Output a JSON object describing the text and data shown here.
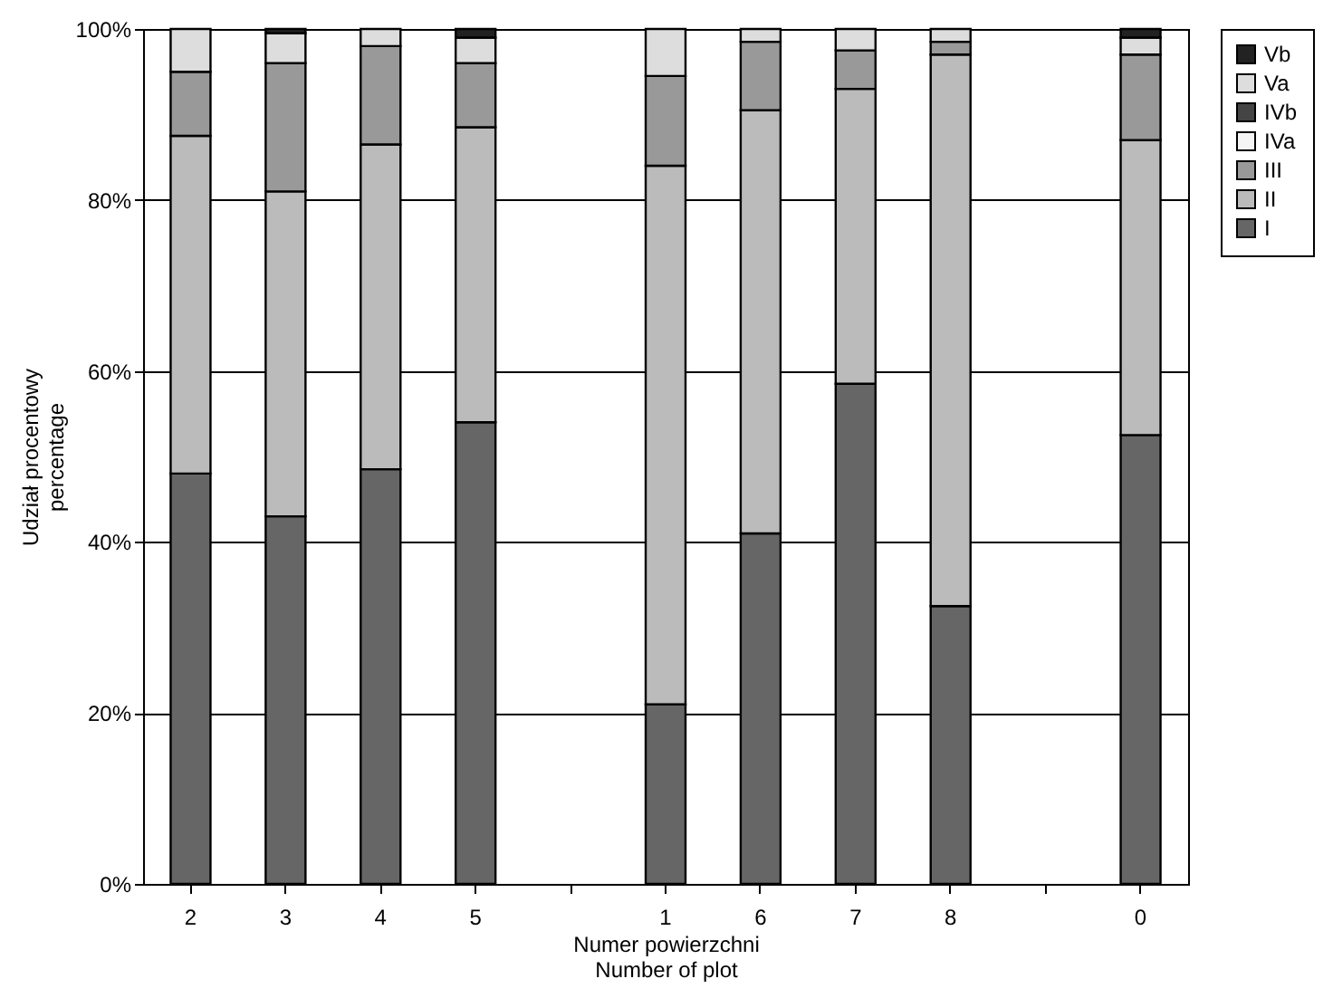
{
  "chart_data": {
    "type": "bar",
    "stacked": true,
    "xlabel": "Numer powierzchni\nNumber of plot",
    "ylabel": "Udział procentowy\npercentage",
    "categories": [
      "2",
      "3",
      "4",
      "5",
      null,
      "1",
      "6",
      "7",
      "8",
      null,
      "0"
    ],
    "ylim": [
      0,
      100
    ],
    "yticks": [
      {
        "value": 0,
        "label": "0%"
      },
      {
        "value": 20,
        "label": "20%"
      },
      {
        "value": 40,
        "label": "40%"
      },
      {
        "value": 60,
        "label": "60%"
      },
      {
        "value": 80,
        "label": "80%"
      },
      {
        "value": 100,
        "label": "100%"
      }
    ],
    "grid": "y",
    "legend": "right",
    "series": [
      {
        "name": "I",
        "color": "#666666",
        "values": [
          48,
          43,
          48.5,
          54,
          null,
          21,
          41,
          58.5,
          32.5,
          null,
          52.5
        ]
      },
      {
        "name": "II",
        "color": "#bbbbbb",
        "values": [
          39.5,
          38,
          38,
          34.5,
          null,
          63,
          49.5,
          34.5,
          64.5,
          null,
          34.5
        ]
      },
      {
        "name": "III",
        "color": "#999999",
        "values": [
          7.5,
          15,
          11.5,
          7.5,
          null,
          10.5,
          8,
          4.5,
          1.5,
          null,
          10
        ]
      },
      {
        "name": "IVa",
        "color": "#f4f4f4",
        "values": [
          0,
          0,
          0,
          0,
          null,
          0,
          0,
          0,
          0,
          null,
          0
        ]
      },
      {
        "name": "IVb",
        "color": "#444444",
        "values": [
          0,
          0,
          0,
          0,
          null,
          0,
          0,
          0,
          0,
          null,
          0
        ]
      },
      {
        "name": "Va",
        "color": "#dddddd",
        "values": [
          5,
          3.5,
          2,
          3,
          null,
          5.5,
          1.5,
          2.5,
          1.5,
          null,
          2
        ]
      },
      {
        "name": "Vb",
        "color": "#222222",
        "values": [
          0,
          0.5,
          0,
          1,
          null,
          0,
          0,
          0,
          0,
          null,
          1
        ]
      }
    ]
  }
}
